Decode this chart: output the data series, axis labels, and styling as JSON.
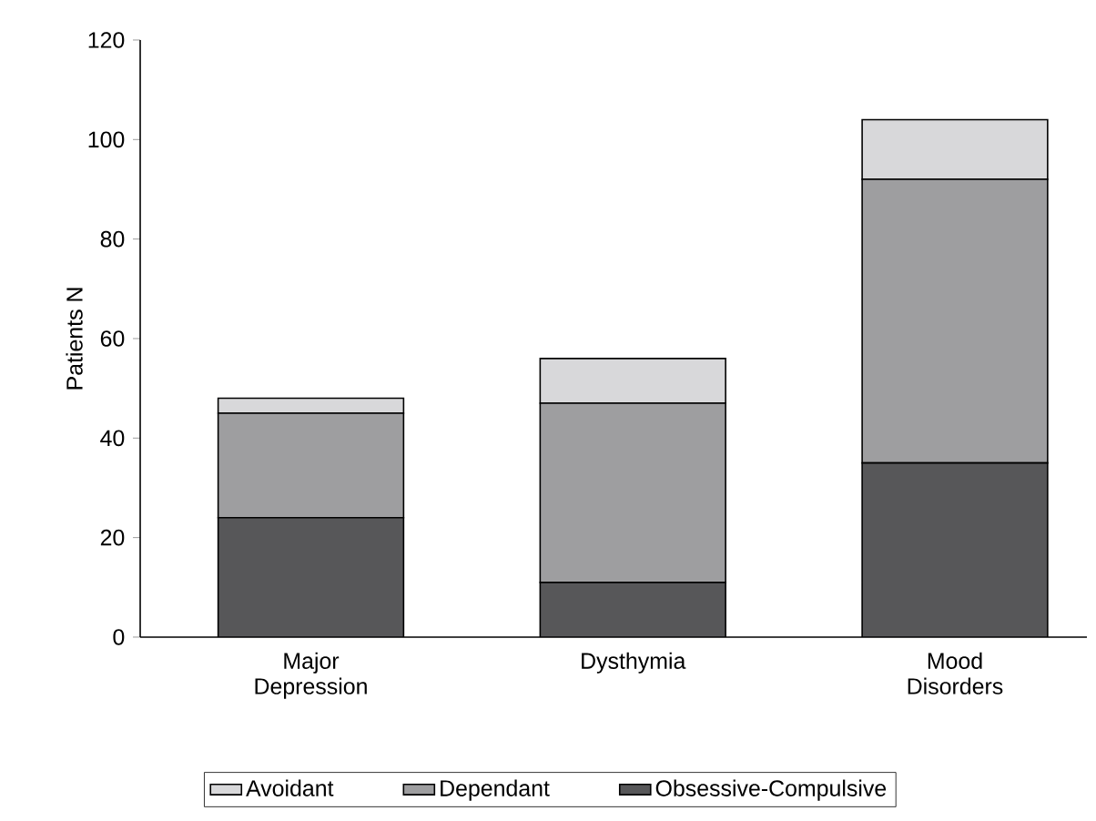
{
  "chart_data": {
    "type": "bar",
    "stacked": true,
    "ylabel": "Patients N",
    "categories": [
      "Major Depression",
      "Dysthymia",
      "Mood Disorders"
    ],
    "series": [
      {
        "name": "Obsessive-Compulsive",
        "color": "#575759",
        "values": [
          24,
          11,
          35
        ]
      },
      {
        "name": "Dependant",
        "color": "#9e9ea0",
        "values": [
          21,
          36,
          57
        ]
      },
      {
        "name": "Avoidant",
        "color": "#d8d8da",
        "values": [
          3,
          9,
          12
        ]
      }
    ],
    "ylim": [
      0,
      120
    ],
    "yticks": [
      0,
      20,
      40,
      60,
      80,
      100,
      120
    ],
    "legend": "bottom"
  }
}
